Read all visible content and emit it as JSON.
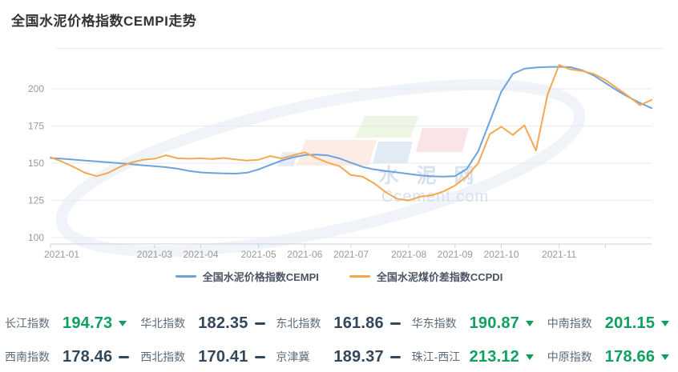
{
  "page": {
    "title": "全国水泥价格指数CEMPI走势"
  },
  "chart_data": {
    "type": "line",
    "title": "全国水泥价格指数CEMPI走势",
    "xlabel": "",
    "ylabel": "",
    "ylim": [
      96,
      222
    ],
    "yticks": [
      100,
      125,
      150,
      175,
      200
    ],
    "grid": true,
    "legend_position": "bottom",
    "categories": [
      "2021-01-01",
      "2021-01-08",
      "2021-01-15",
      "2021-01-22",
      "2021-01-29",
      "2021-02-05",
      "2021-02-12",
      "2021-02-19",
      "2021-02-26",
      "2021-03-05",
      "2021-03-12",
      "2021-03-19",
      "2021-03-26",
      "2021-04-02",
      "2021-04-09",
      "2021-04-16",
      "2021-04-23",
      "2021-04-30",
      "2021-05-07",
      "2021-05-14",
      "2021-05-21",
      "2021-05-28",
      "2021-06-04",
      "2021-06-11",
      "2021-06-18",
      "2021-06-25",
      "2021-07-02",
      "2021-07-09",
      "2021-07-16",
      "2021-07-23",
      "2021-07-30",
      "2021-08-06",
      "2021-08-13",
      "2021-08-20",
      "2021-08-27",
      "2021-09-03",
      "2021-09-10",
      "2021-09-17",
      "2021-09-24",
      "2021-10-01",
      "2021-10-08",
      "2021-10-15",
      "2021-10-22",
      "2021-10-29",
      "2021-11-05",
      "2021-11-12",
      "2021-11-19",
      "2021-11-26",
      "2021-12-03",
      "2021-12-10",
      "2021-12-17",
      "2021-12-24",
      "2021-12-31"
    ],
    "xticks": [
      {
        "idx": 0,
        "label": "2021-01"
      },
      {
        "idx": 9,
        "label": "2021-03"
      },
      {
        "idx": 13,
        "label": "2021-04"
      },
      {
        "idx": 18,
        "label": "2021-05"
      },
      {
        "idx": 22,
        "label": "2021-06"
      },
      {
        "idx": 26,
        "label": "2021-07"
      },
      {
        "idx": 31,
        "label": "2021-08"
      },
      {
        "idx": 35,
        "label": "2021-09"
      },
      {
        "idx": 39,
        "label": "2021-10"
      },
      {
        "idx": 44,
        "label": "2021-11"
      },
      {
        "idx": 48,
        "label": ""
      }
    ],
    "series": [
      {
        "name": "全国水泥价格指数CEMPI",
        "color": "#6ca3dc",
        "values": [
          153.5,
          153.0,
          152.4,
          151.8,
          151.2,
          150.6,
          150.0,
          149.3,
          148.6,
          148.0,
          147.3,
          146.3,
          144.8,
          143.8,
          143.4,
          143.1,
          143.0,
          143.6,
          145.8,
          148.8,
          151.8,
          154.0,
          155.5,
          155.8,
          155.2,
          153.2,
          150.3,
          147.5,
          145.8,
          144.8,
          143.8,
          142.8,
          141.8,
          141.2,
          141.0,
          141.3,
          146.0,
          158.0,
          178.0,
          198.0,
          210.0,
          213.5,
          214.3,
          214.6,
          214.8,
          214.5,
          212.5,
          209.0,
          204.0,
          199.0,
          194.5,
          190.5,
          187.0
        ]
      },
      {
        "name": "全国水泥煤价差指数CCPDI",
        "color": "#f4a850",
        "values": [
          154.0,
          151.0,
          147.5,
          143.5,
          141.3,
          143.5,
          147.5,
          150.5,
          152.3,
          153.0,
          155.3,
          153.3,
          153.0,
          153.3,
          152.8,
          153.5,
          152.5,
          151.8,
          152.3,
          154.8,
          153.2,
          155.3,
          157.3,
          153.5,
          150.3,
          148.0,
          142.0,
          141.0,
          136.5,
          130.5,
          126.0,
          125.0,
          127.5,
          128.5,
          131.0,
          135.0,
          141.0,
          150.0,
          169.5,
          174.5,
          169.0,
          175.5,
          158.5,
          196.0,
          216.0,
          213.0,
          212.0,
          210.0,
          206.0,
          200.5,
          195.0,
          189.0,
          192.5
        ]
      }
    ]
  },
  "legend": {
    "items": [
      {
        "label": "全国水泥价格指数CEMPI",
        "color": "#6ca3dc"
      },
      {
        "label": "全国水泥煤价差指数CCPDI",
        "color": "#f4a850"
      }
    ]
  },
  "watermark": {
    "line1": "水泥网",
    "line2": "Ccement.com"
  },
  "stats": {
    "green": "#0fa05e",
    "dark": "#33475b",
    "items": [
      {
        "label": "长江指数",
        "value": "194.73",
        "trend": "down"
      },
      {
        "label": "华北指数",
        "value": "182.35",
        "trend": "flat"
      },
      {
        "label": "东北指数",
        "value": "161.86",
        "trend": "flat"
      },
      {
        "label": "华东指数",
        "value": "190.87",
        "trend": "down"
      },
      {
        "label": "中南指数",
        "value": "201.15",
        "trend": "down"
      },
      {
        "label": "西南指数",
        "value": "178.46",
        "trend": "flat"
      },
      {
        "label": "西北指数",
        "value": "170.41",
        "trend": "flat"
      },
      {
        "label": "京津冀",
        "value": "189.37",
        "trend": "flat"
      },
      {
        "label": "珠江-西江",
        "value": "213.12",
        "trend": "down"
      },
      {
        "label": "中原指数",
        "value": "178.66",
        "trend": "down"
      }
    ]
  }
}
